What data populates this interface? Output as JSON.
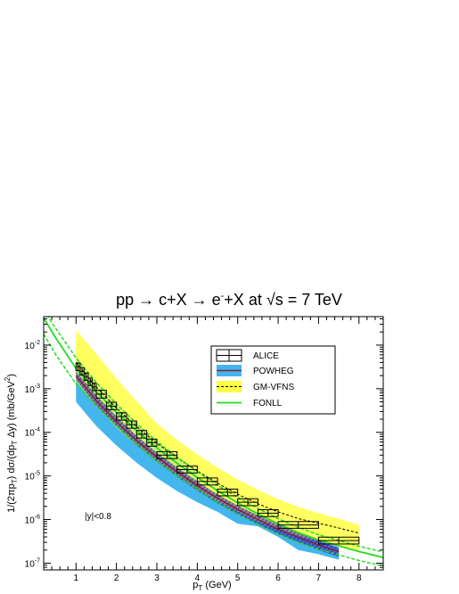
{
  "chart_data": {
    "type": "line",
    "title": {
      "main": "pp → c+X → e",
      "sup": "-",
      "mid": "+X at ",
      "root": "√",
      "tail": "s = 7 TeV"
    },
    "xlabel": {
      "main": "p",
      "sub": "T",
      "tail": " (GeV)"
    },
    "ylabel": {
      "p1": "1/(2πp",
      "s1": "T",
      "p2": ") dσ/(dp",
      "s2": "T",
      "p3": " Δy) (mb/GeV",
      "sup": "2",
      "p4": ")"
    },
    "annotation": "|y|<0.8",
    "xlim": [
      0.2,
      8.6
    ],
    "ylim": [
      7e-08,
      0.045
    ],
    "yscale": "log",
    "x_ticks": [
      "1",
      "2",
      "3",
      "4",
      "5",
      "6",
      "7",
      "8"
    ],
    "y_ticks": [
      {
        "base": "10",
        "exp": "-7",
        "value": 1e-07
      },
      {
        "base": "10",
        "exp": "-6",
        "value": 1e-06
      },
      {
        "base": "10",
        "exp": "-5",
        "value": 1e-05
      },
      {
        "base": "10",
        "exp": "-4",
        "value": 0.0001
      },
      {
        "base": "10",
        "exp": "-3",
        "value": 0.001
      },
      {
        "base": "10",
        "exp": "-2",
        "value": 0.01
      }
    ],
    "legend": {
      "position": "top-right",
      "entries": [
        {
          "label": "ALICE",
          "kind": "box"
        },
        {
          "label": "POWHEG",
          "kind": "band-line"
        },
        {
          "label": "GM-VFNS",
          "kind": "band-dashed"
        },
        {
          "label": "FONLL",
          "kind": "line-green"
        }
      ]
    },
    "series": [
      {
        "name": "ALICE",
        "points": [
          {
            "x": 1.05,
            "xlo": 1.0,
            "xhi": 1.1,
            "y": 0.0032,
            "ylo": 0.0026,
            "yhi": 0.0039
          },
          {
            "x": 1.15,
            "xlo": 1.1,
            "xhi": 1.2,
            "y": 0.0025,
            "ylo": 0.00205,
            "yhi": 0.00305
          },
          {
            "x": 1.25,
            "xlo": 1.2,
            "xhi": 1.3,
            "y": 0.0019,
            "ylo": 0.00155,
            "yhi": 0.0023
          },
          {
            "x": 1.35,
            "xlo": 1.3,
            "xhi": 1.4,
            "y": 0.00145,
            "ylo": 0.00118,
            "yhi": 0.00175
          },
          {
            "x": 1.45,
            "xlo": 1.4,
            "xhi": 1.5,
            "y": 0.0011,
            "ylo": 0.0009,
            "yhi": 0.00135
          },
          {
            "x": 1.625,
            "xlo": 1.5,
            "xhi": 1.75,
            "y": 0.00075,
            "ylo": 0.00061,
            "yhi": 0.00092
          },
          {
            "x": 1.875,
            "xlo": 1.75,
            "xhi": 2.0,
            "y": 0.0004,
            "ylo": 0.00033,
            "yhi": 0.00049
          },
          {
            "x": 2.125,
            "xlo": 2.0,
            "xhi": 2.25,
            "y": 0.00023,
            "ylo": 0.00019,
            "yhi": 0.00028
          },
          {
            "x": 2.375,
            "xlo": 2.25,
            "xhi": 2.5,
            "y": 0.00015,
            "ylo": 0.000124,
            "yhi": 0.000182
          },
          {
            "x": 2.625,
            "xlo": 2.5,
            "xhi": 2.75,
            "y": 9e-05,
            "ylo": 7.4e-05,
            "yhi": 0.00011
          },
          {
            "x": 2.875,
            "xlo": 2.75,
            "xhi": 3.0,
            "y": 5.8e-05,
            "ylo": 4.8e-05,
            "yhi": 7e-05
          },
          {
            "x": 3.25,
            "xlo": 3.0,
            "xhi": 3.5,
            "y": 3e-05,
            "ylo": 2.5e-05,
            "yhi": 3.6e-05
          },
          {
            "x": 3.75,
            "xlo": 3.5,
            "xhi": 4.0,
            "y": 1.4e-05,
            "ylo": 1.17e-05,
            "yhi": 1.68e-05
          },
          {
            "x": 4.25,
            "xlo": 4.0,
            "xhi": 4.5,
            "y": 7.5e-06,
            "ylo": 6.2e-06,
            "yhi": 9e-06
          },
          {
            "x": 4.75,
            "xlo": 4.5,
            "xhi": 5.0,
            "y": 4.2e-06,
            "ylo": 3.5e-06,
            "yhi": 5e-06
          },
          {
            "x": 5.25,
            "xlo": 5.0,
            "xhi": 5.5,
            "y": 2.5e-06,
            "ylo": 2.08e-06,
            "yhi": 3e-06
          },
          {
            "x": 5.75,
            "xlo": 5.5,
            "xhi": 6.0,
            "y": 1.4e-06,
            "ylo": 1.17e-06,
            "yhi": 1.68e-06
          },
          {
            "x": 6.5,
            "xlo": 6.0,
            "xhi": 7.0,
            "y": 7.5e-07,
            "ylo": 6.3e-07,
            "yhi": 9e-07
          },
          {
            "x": 7.5,
            "xlo": 7.0,
            "xhi": 8.0,
            "y": 3.3e-07,
            "ylo": 2.75e-07,
            "yhi": 3.95e-07
          }
        ]
      },
      {
        "name": "POWHEG",
        "x": [
          1.0,
          1.5,
          2.0,
          2.5,
          3.0,
          3.5,
          4.0,
          4.5,
          5.0,
          5.5,
          6.0,
          6.5,
          7.0,
          7.5
        ],
        "central": [
          0.002,
          0.00053,
          0.000175,
          6.5e-05,
          2.7e-05,
          1.25e-05,
          6e-06,
          3.1e-06,
          1.7e-06,
          1e-06,
          6e-07,
          3.9e-07,
          2.6e-07,
          1.85e-07
        ],
        "upper": [
          0.0025,
          0.0007,
          0.00023,
          8.3e-05,
          3.4e-05,
          1.55e-05,
          7.5e-06,
          3.8e-06,
          2.1e-06,
          1.25e-06,
          7.6e-07,
          4.9e-07,
          3.3e-07,
          2.3e-07
        ],
        "lower": [
          0.0016,
          0.00041,
          0.000135,
          5e-05,
          2.1e-05,
          9.5e-06,
          4.6e-06,
          2.35e-06,
          1.3e-06,
          7.7e-07,
          4.6e-07,
          3e-07,
          2e-07,
          1.4e-07
        ],
        "band_upper": [
          0.0016,
          0.00048,
          0.00016,
          6.4e-05,
          2.7e-05,
          1.3e-05,
          6.4e-06,
          3.4e-06,
          1.9e-06,
          1.15e-06,
          7.2e-07,
          4.7e-07,
          3.2e-07,
          2.3e-07
        ],
        "band_lower": [
          0.0005,
          0.00014,
          5e-05,
          2e-05,
          9e-06,
          4.5e-06,
          2.5e-06,
          1.5e-06,
          8e-07,
          7e-07,
          4e-07,
          2e-07,
          1.6e-07,
          1.2e-07
        ]
      },
      {
        "name": "GM-VFNS",
        "x": [
          1.0,
          1.5,
          2.0,
          2.5,
          3.0,
          3.5,
          4.0,
          4.5,
          5.0,
          5.5,
          6.0,
          6.5,
          7.0,
          7.5,
          8.0
        ],
        "central": [
          0.004,
          0.0011,
          0.00036,
          0.000135,
          5.6e-05,
          2.6e-05,
          1.3e-05,
          6.8e-06,
          3.8e-06,
          2.3e-06,
          1.5e-06,
          1.05e-06,
          8.2e-07,
          6.4e-07,
          4.9e-07
        ],
        "upper": [
          0.022,
          0.0063,
          0.00172,
          0.00052,
          0.00016,
          6.7e-05,
          3.1e-05,
          1.55e-05,
          8.3e-06,
          4.8e-06,
          2.95e-06,
          1.95e-06,
          1.4e-06,
          1.05e-06,
          7.5e-07
        ],
        "lower": [
          0.0015,
          0.0004,
          0.00013,
          5e-05,
          2.1e-05,
          9.8e-06,
          4.9e-06,
          2.6e-06,
          1.5e-06,
          9e-07,
          5.9e-07,
          4.2e-07,
          3.2e-07,
          2.5e-07,
          1.8e-07
        ]
      },
      {
        "name": "FONLL",
        "x": [
          0.2,
          0.5,
          1.0,
          1.5,
          2.0,
          2.5,
          3.0,
          3.5,
          4.0,
          4.5,
          5.0,
          5.5,
          6.0,
          6.5,
          7.0,
          7.5,
          8.0,
          8.6
        ],
        "central": [
          0.042,
          0.0145,
          0.0029,
          0.00086,
          0.00029,
          0.00011,
          4.4e-05,
          1.95e-05,
          9.3e-06,
          4.6e-06,
          2.4e-06,
          1.35e-06,
          8e-07,
          5e-07,
          3.4e-07,
          2.5e-07,
          1.85e-07,
          1.35e-07
        ],
        "upper": [
          0.063,
          0.024,
          0.0051,
          0.0014,
          0.00045,
          0.00016,
          6.2e-05,
          2.7e-05,
          1.25e-05,
          6.1e-06,
          3.2e-06,
          1.8e-06,
          1.05e-06,
          6.6e-07,
          4.5e-07,
          3.3e-07,
          2.45e-07,
          1.8e-07
        ],
        "lower": [
          0.018,
          0.006,
          0.0013,
          0.0004,
          0.00014,
          5.4e-05,
          2.2e-05,
          1e-05,
          4.9e-06,
          2.5e-06,
          1.35e-06,
          7.8e-07,
          4.7e-07,
          3e-07,
          2.1e-07,
          1.55e-07,
          1.15e-07,
          8.6e-08
        ]
      }
    ],
    "colors": {
      "alice": "#000000",
      "powheg_band": "#44b6ee",
      "powheg_hatch": "#3a2fb8",
      "powheg_line": "#8a1c3a",
      "gmvfns_band": "#ffff44",
      "gmvfns_line": "#000000",
      "fonll": "#22dd22",
      "overlap": "#7fd07a"
    }
  }
}
